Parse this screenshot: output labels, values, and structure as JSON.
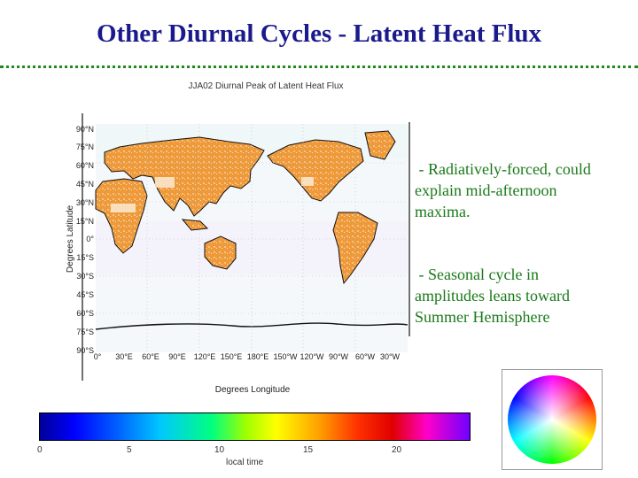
{
  "slide": {
    "title": "Other Diurnal Cycles - Latent Heat Flux"
  },
  "map": {
    "title": "JJA02 Diurnal Peak of Latent Heat Flux",
    "lat_ticks": [
      "90°N",
      "75°N",
      "60°N",
      "45°N",
      "30°N",
      "15°N",
      "0°",
      "15°S",
      "30°S",
      "45°S",
      "60°S",
      "75°S",
      "90°S"
    ],
    "lon_ticks": [
      "0°",
      "30°E",
      "60°E",
      "90°E",
      "120°E",
      "150°E",
      "180°E",
      "150°W",
      "120°W",
      "90°W",
      "60°W",
      "30°W"
    ],
    "xlabel": "Degrees Longitude",
    "ylabel": "Degrees Latitude"
  },
  "bullets": [
    {
      "lines": [
        " - Radiatively-forced, could",
        "explain mid-afternoon",
        "maxima."
      ]
    },
    {
      "lines": [
        " - Seasonal cycle in",
        "amplitudes leans toward",
        "Summer Hemisphere"
      ]
    }
  ],
  "colorbar": {
    "ticks": [
      "0",
      "5",
      "10",
      "15",
      "20"
    ],
    "label": "local time"
  },
  "colors": {
    "title": "#1a1a8c",
    "bullet_text": "#1a7a1a",
    "land": "#ef9a3a",
    "divider": "#1f8a1f"
  }
}
